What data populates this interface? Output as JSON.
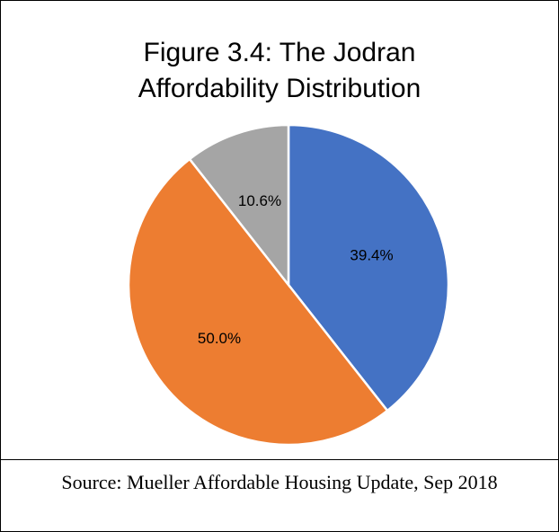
{
  "chart_data": {
    "type": "pie",
    "title": "Figure 3.4: The Jodran Affordability Distribution",
    "caption": "Source: Mueller Affordable Housing Update, Sep 2018",
    "values": [
      39.4,
      50.0,
      10.6
    ],
    "value_labels": [
      "39.4%",
      "50.0%",
      "10.6%"
    ],
    "colors": [
      "#4472c4",
      "#ed7d31",
      "#a5a5a5"
    ]
  }
}
